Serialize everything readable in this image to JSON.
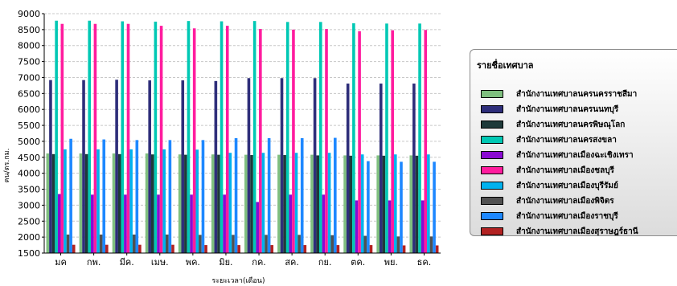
{
  "chart_data": {
    "type": "bar",
    "ylabel": "คน/ตร.กม.",
    "xlabel": "ระยะเวลา(เดือน)",
    "ylim": [
      1500,
      9000
    ],
    "yticks": [
      1500,
      2000,
      2500,
      3000,
      3500,
      4000,
      4500,
      5000,
      5500,
      6000,
      6500,
      7000,
      7500,
      8000,
      8500,
      9000
    ],
    "grid": true,
    "legend_position": "right",
    "categories": [
      "มค",
      "กพ.",
      "มีค.",
      "เมษ.",
      "พค.",
      "มิย.",
      "กค.",
      "สค.",
      "กย.",
      "ตค.",
      "พย.",
      "ธค."
    ],
    "series": [
      {
        "name": "สำนักงานเทศบาลนครนครราชสีมา",
        "color": "#7fbf7f",
        "values": [
          4620,
          4620,
          4620,
          4620,
          4590,
          4590,
          4580,
          4580,
          4580,
          4560,
          4560,
          4560
        ]
      },
      {
        "name": "สำนักงานเทศบาลนครนนทบุรี",
        "color": "#2e2e7a",
        "values": [
          6920,
          6920,
          6930,
          6910,
          6910,
          6890,
          6980,
          6980,
          6980,
          6810,
          6810,
          6810
        ]
      },
      {
        "name": "สำนักงานเทศบาลนครพิษณุโลก",
        "color": "#1e3a3a",
        "values": [
          4600,
          4600,
          4600,
          4590,
          4580,
          4580,
          4570,
          4570,
          4560,
          4550,
          4550,
          4550
        ]
      },
      {
        "name": "สำนักงานเทศบาลนครสงขลา",
        "color": "#00c8b4",
        "values": [
          8780,
          8780,
          8760,
          8750,
          8770,
          8760,
          8770,
          8740,
          8740,
          8700,
          8690,
          8690
        ]
      },
      {
        "name": "สำนักงานเทศบาลเมืองฉะเชิงเทรา",
        "color": "#8a0ad2",
        "values": [
          3350,
          3330,
          3330,
          3330,
          3330,
          3330,
          3100,
          3330,
          3330,
          3150,
          3150,
          3150
        ]
      },
      {
        "name": "สำนักงานเทศบาลเมืองชลบุรี",
        "color": "#ff1c9e",
        "values": [
          8680,
          8680,
          8680,
          8620,
          8540,
          8620,
          8520,
          8500,
          8520,
          8450,
          8480,
          8490
        ]
      },
      {
        "name": "สำนักงานเทศบาลเมืองบุรีรัมย์",
        "color": "#00b2ee",
        "values": [
          4750,
          4750,
          4750,
          4750,
          4740,
          4640,
          4640,
          4640,
          4640,
          4590,
          4590,
          4590
        ]
      },
      {
        "name": "สำนักงานเทศบาลเมืองพิจิตร",
        "color": "#505050",
        "values": [
          2080,
          2080,
          2080,
          2080,
          2070,
          2070,
          2070,
          2070,
          2060,
          2040,
          2020,
          2020
        ]
      },
      {
        "name": "สำนักงานเทศบาลเมืองราชบุรี",
        "color": "#1e88ff",
        "values": [
          5080,
          5060,
          5040,
          5040,
          5040,
          5100,
          5100,
          5100,
          5110,
          4380,
          4360,
          4360
        ]
      },
      {
        "name": "สำนักงานเทศบาลเมืองสุราษฎร์ธานี",
        "color": "#b22222",
        "values": [
          1760,
          1760,
          1760,
          1760,
          1750,
          1750,
          1750,
          1750,
          1750,
          1750,
          1740,
          1740
        ]
      }
    ]
  },
  "legend": {
    "title": "รายชื่อเทศบาล"
  }
}
